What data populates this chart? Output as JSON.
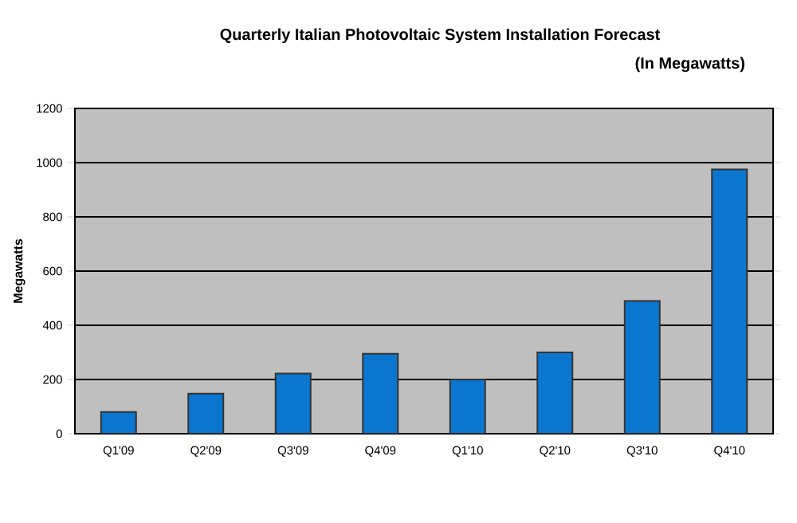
{
  "chart_data": {
    "type": "bar",
    "title": "Quarterly Italian Photovoltaic System Installation Forecast",
    "subtitle": "(In Megawatts)",
    "ylabel": "Megawatts",
    "categories": [
      "Q1'09",
      "Q2'09",
      "Q3'09",
      "Q4'09",
      "Q1'10",
      "Q2'10",
      "Q3'10",
      "Q4'10"
    ],
    "values": [
      80,
      148,
      222,
      295,
      200,
      300,
      490,
      975
    ],
    "color": "#0a76d0",
    "ylim": [
      0,
      1200
    ],
    "yticks": [
      0,
      200,
      400,
      600,
      800,
      1000,
      1200
    ],
    "grid": "y"
  }
}
